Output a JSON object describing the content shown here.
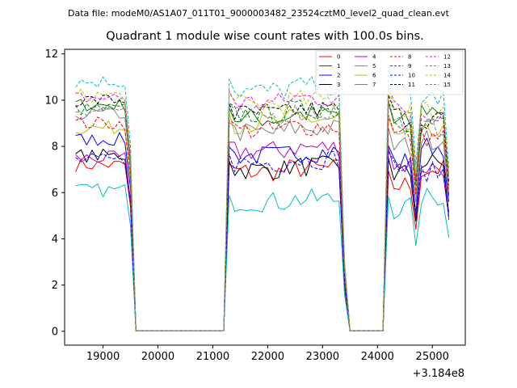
{
  "chart_data": {
    "type": "line",
    "suptitle": "Data file: modeM0/AS1A07_011T01_9000003482_23524cztM0_level2_quad_clean.evt",
    "title": "Quadrant 1 module wise count rates with 100.0s bins.",
    "xlabel": "",
    "ylabel": "",
    "x_offset_label": "+3.184e8",
    "xlim": [
      18300,
      25600
    ],
    "ylim": [
      -0.6,
      12.2
    ],
    "xticks": [
      19000,
      20000,
      21000,
      22000,
      23000,
      24000,
      25000
    ],
    "xtick_labels": [
      "19000",
      "20000",
      "21000",
      "22000",
      "23000",
      "24000",
      "25000"
    ],
    "yticks": [
      0,
      2,
      4,
      6,
      8,
      10,
      12
    ],
    "ytick_labels": [
      "0",
      "2",
      "4",
      "6",
      "8",
      "10",
      "12"
    ],
    "grid": false,
    "legend_position": "top-right",
    "gaps": [
      {
        "from": 19650,
        "to": 21150
      },
      {
        "from": 23450,
        "to": 24150
      }
    ],
    "series": [
      {
        "name": "0",
        "color": "#ff0000",
        "dash": "solid",
        "levels": [
          7.2,
          6.9,
          6.3,
          7.0
        ]
      },
      {
        "name": "1",
        "color": "#008000",
        "dash": "solid",
        "levels": [
          9.8,
          9.2,
          9.0,
          9.6
        ]
      },
      {
        "name": "2",
        "color": "#0000ff",
        "dash": "solid",
        "levels": [
          8.3,
          7.6,
          7.3,
          8.0
        ]
      },
      {
        "name": "3",
        "color": "#000000",
        "dash": "solid",
        "levels": [
          7.6,
          7.0,
          6.8,
          7.3
        ]
      },
      {
        "name": "4",
        "color": "#bf00bf",
        "dash": "solid",
        "levels": [
          7.5,
          7.8,
          7.2,
          7.1
        ]
      },
      {
        "name": "5",
        "color": "#00bfbf",
        "dash": "solid",
        "levels": [
          6.1,
          5.6,
          5.3,
          5.8
        ]
      },
      {
        "name": "6",
        "color": "#bfbf00",
        "dash": "solid",
        "levels": [
          8.8,
          9.0,
          8.4,
          8.5
        ]
      },
      {
        "name": "7",
        "color": "#808080",
        "dash": "solid",
        "levels": [
          9.4,
          8.6,
          8.0,
          8.3
        ]
      },
      {
        "name": "8",
        "color": "#ff0000",
        "dash": "dashed",
        "levels": [
          9.0,
          8.7,
          8.5,
          8.4
        ]
      },
      {
        "name": "9",
        "color": "#008000",
        "dash": "dashed",
        "levels": [
          9.6,
          9.4,
          9.1,
          9.0
        ]
      },
      {
        "name": "10",
        "color": "#0000ff",
        "dash": "dashed",
        "levels": [
          7.4,
          7.3,
          7.1,
          6.9
        ]
      },
      {
        "name": "11",
        "color": "#000000",
        "dash": "dashed",
        "levels": [
          10.0,
          9.4,
          9.3,
          9.2
        ]
      },
      {
        "name": "12",
        "color": "#ff00ff",
        "dash": "dashed",
        "levels": [
          10.1,
          9.9,
          9.6,
          9.5
        ]
      },
      {
        "name": "13",
        "color": "#00bfbf",
        "dash": "dashed",
        "levels": [
          10.8,
          10.4,
          10.3,
          10.1
        ]
      },
      {
        "name": "14",
        "color": "#bfbf00",
        "dash": "dashed",
        "levels": [
          10.2,
          9.8,
          9.7,
          9.6
        ]
      },
      {
        "name": "15",
        "color": "#808080",
        "dash": "dashed",
        "levels": [
          9.6,
          9.3,
          9.0,
          8.8
        ]
      }
    ]
  }
}
